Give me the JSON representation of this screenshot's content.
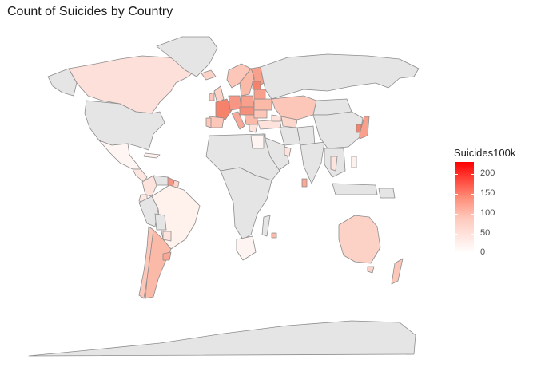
{
  "title": "Count of Suicides by Country",
  "legend": {
    "title": "Suicides100k",
    "ticks": [
      "200",
      "150",
      "100",
      "50",
      "0"
    ],
    "scale": {
      "low": "#ffffff",
      "high": "#ff0000",
      "min": 0,
      "max": 230
    },
    "no_data_color": "#e5e5e5",
    "border_color": "#8c8c8c"
  }
}
